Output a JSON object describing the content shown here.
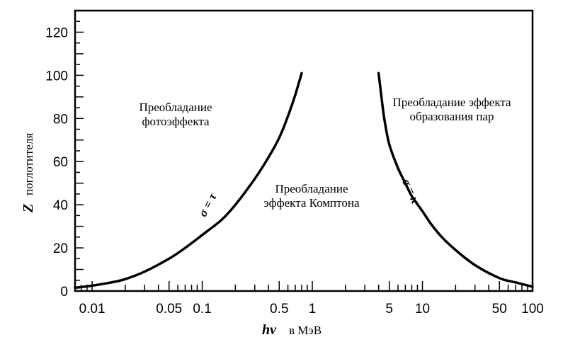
{
  "chart_data": {
    "type": "line",
    "x_scale": "log",
    "xlim": [
      0.007,
      100
    ],
    "ylim": [
      0,
      130
    ],
    "grid": false,
    "x_ticks": [
      {
        "value": 0.01,
        "label": "0.01"
      },
      {
        "value": 0.05,
        "label": "0.05"
      },
      {
        "value": 0.1,
        "label": "0.1"
      },
      {
        "value": 0.5,
        "label": "0.5"
      },
      {
        "value": 1,
        "label": "1"
      },
      {
        "value": 5,
        "label": "5"
      },
      {
        "value": 10,
        "label": "10"
      },
      {
        "value": 50,
        "label": "50"
      },
      {
        "value": 100,
        "label": "100"
      }
    ],
    "y_ticks": [
      {
        "value": 0,
        "label": "0"
      },
      {
        "value": 20,
        "label": "20"
      },
      {
        "value": 40,
        "label": "40"
      },
      {
        "value": 60,
        "label": "60"
      },
      {
        "value": 80,
        "label": "80"
      },
      {
        "value": 100,
        "label": "100"
      },
      {
        "value": 120,
        "label": "120"
      }
    ],
    "ylabel_symbol": "Z",
    "ylabel_text": "поглотителя",
    "xlabel_symbol": "hν",
    "xlabel_text": "в МэВ",
    "series": [
      {
        "label": "σ = τ",
        "x": [
          0.007,
          0.01,
          0.015,
          0.02,
          0.03,
          0.05,
          0.07,
          0.1,
          0.15,
          0.2,
          0.3,
          0.4,
          0.5,
          0.6,
          0.7,
          0.8
        ],
        "y": [
          1.5,
          2.5,
          4,
          5.5,
          9,
          15,
          20,
          26,
          33,
          40,
          52,
          62,
          71,
          81,
          91,
          101
        ]
      },
      {
        "label": "σ = κ",
        "x": [
          4,
          4.2,
          4.5,
          5,
          6,
          7,
          8,
          10,
          12,
          15,
          20,
          30,
          50,
          70,
          100
        ],
        "y": [
          101,
          92,
          80,
          68,
          57,
          50,
          44,
          37,
          31,
          25,
          19,
          12,
          6,
          4,
          2
        ]
      }
    ],
    "annotations": {
      "photo": [
        "Преобладание",
        "фотоэффекта"
      ],
      "compton": [
        "Преобладание",
        "эффекта Комптона"
      ],
      "pair": [
        "Преобладание эффекта",
        "образования пар"
      ]
    }
  }
}
